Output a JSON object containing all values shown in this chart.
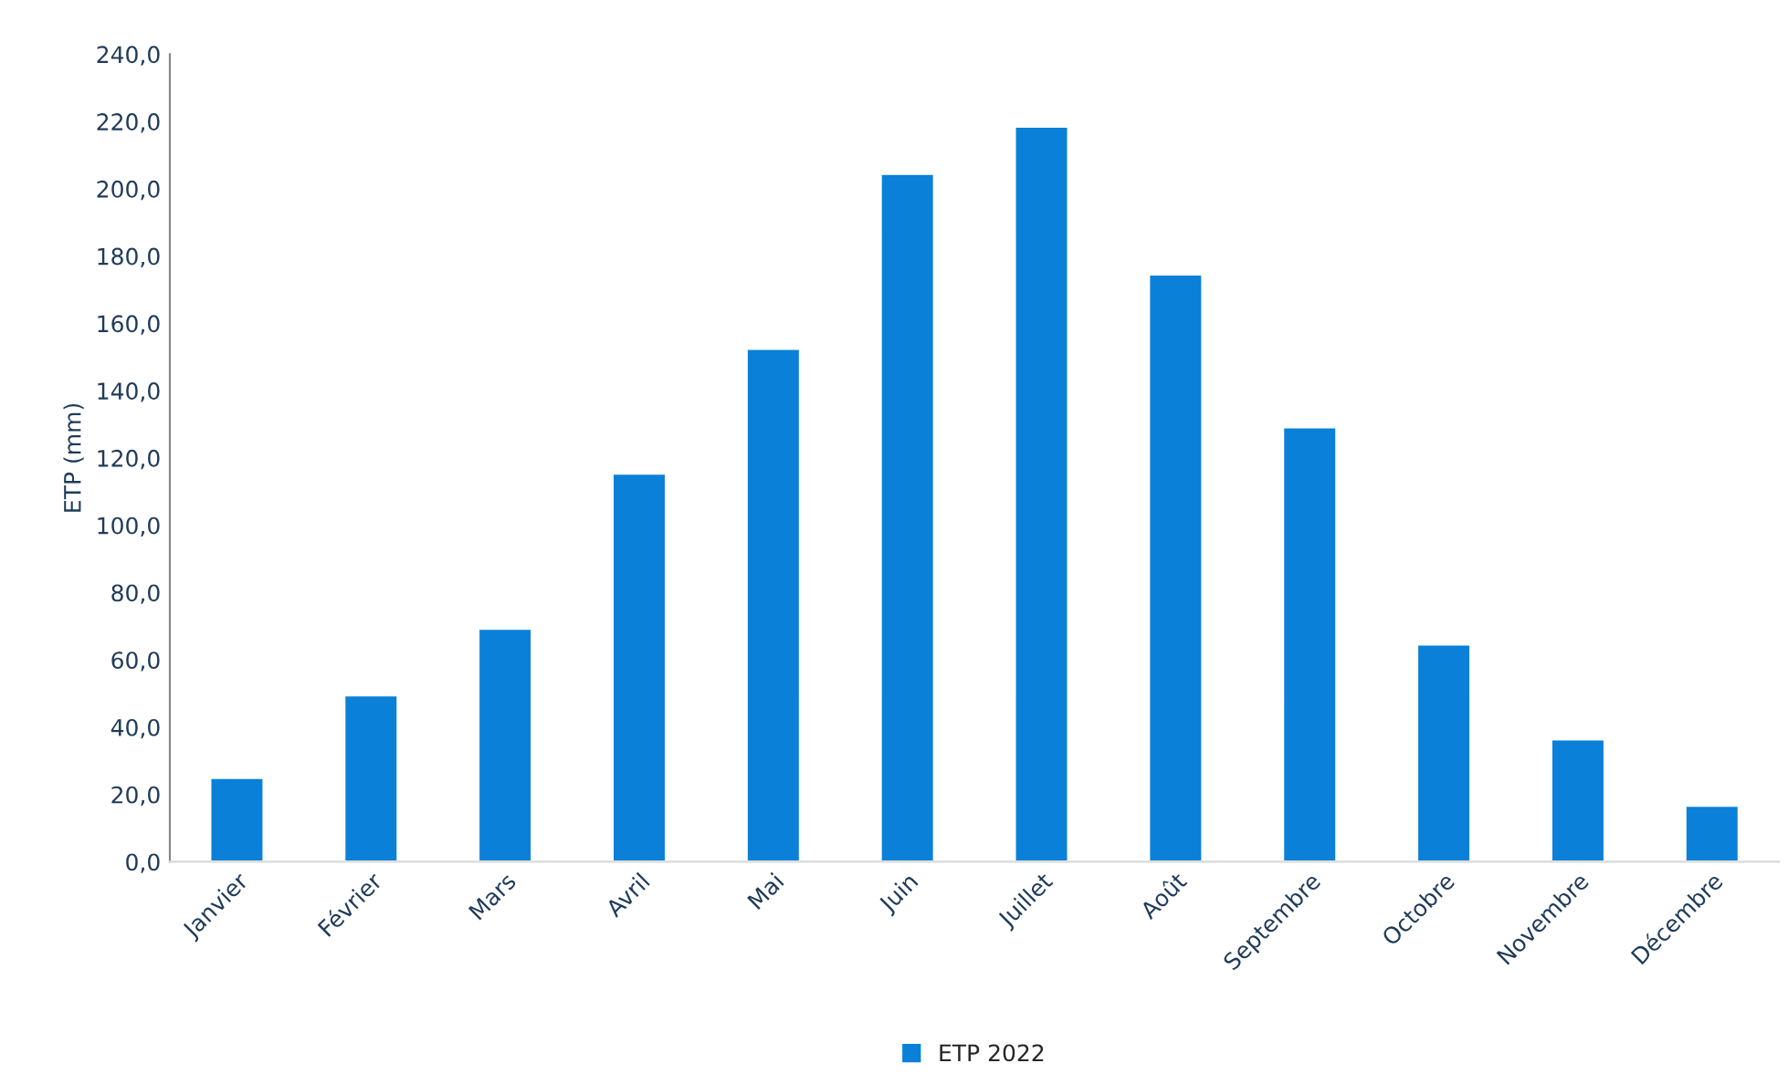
{
  "chart_data": {
    "type": "bar",
    "ylabel": "ETP (mm)",
    "categories": [
      "Janvier",
      "Février",
      "Mars",
      "Avril",
      "Mai",
      "Juin",
      "Juillet",
      "Août",
      "Septembre",
      "Octobre",
      "Novembre",
      "Décembre"
    ],
    "series": [
      {
        "name": "ETP 2022",
        "color": "#0a80d8",
        "values": [
          25,
          49.5,
          69.3,
          115.4,
          152.5,
          204.5,
          218.5,
          174.6,
          129.2,
          64.6,
          36.4,
          16.7
        ]
      }
    ],
    "ylim": [
      0,
      240
    ],
    "yticks": [
      {
        "value": 0,
        "label": "0,0"
      },
      {
        "value": 20,
        "label": "20,0"
      },
      {
        "value": 40,
        "label": "40,0"
      },
      {
        "value": 60,
        "label": "60,0"
      },
      {
        "value": 80,
        "label": "80,0"
      },
      {
        "value": 100,
        "label": "100,0"
      },
      {
        "value": 120,
        "label": "120,0"
      },
      {
        "value": 140,
        "label": "140,0"
      },
      {
        "value": 160,
        "label": "160,0"
      },
      {
        "value": 180,
        "label": "180,0"
      },
      {
        "value": 200,
        "label": "200,0"
      },
      {
        "value": 220,
        "label": "220,0"
      },
      {
        "value": 240,
        "label": "240,0"
      }
    ],
    "grid": false,
    "legend": "bottom"
  }
}
